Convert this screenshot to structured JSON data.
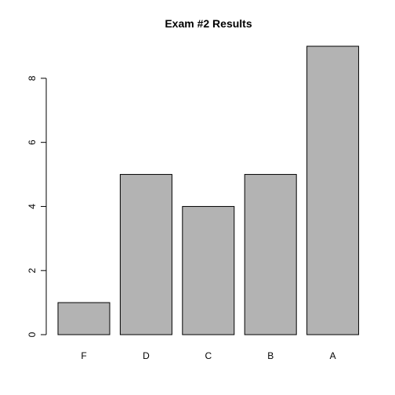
{
  "chart_data": {
    "type": "bar",
    "title": "Exam #2 Results",
    "xlabel": "",
    "ylabel": "",
    "categories": [
      "F",
      "D",
      "C",
      "B",
      "A"
    ],
    "values": [
      1,
      5,
      4,
      5,
      9
    ],
    "ylim": [
      0,
      9
    ],
    "yticks": [
      0,
      2,
      4,
      6,
      8
    ],
    "bar_color": "#b3b3b3",
    "grid": false,
    "legend": "none"
  }
}
